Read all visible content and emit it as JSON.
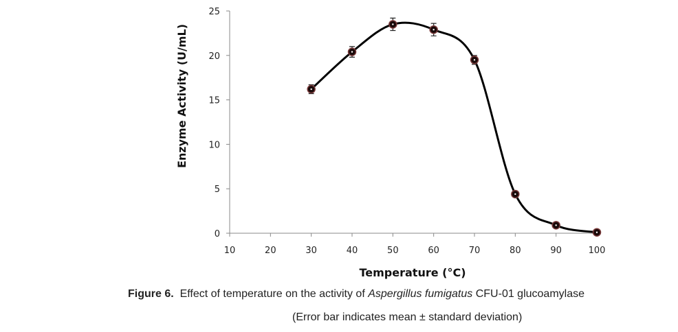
{
  "chart_data": {
    "type": "line",
    "xlabel": "Temperature (°C)",
    "ylabel": "Enzyme Activity (U/mL)",
    "xlim": [
      10,
      100
    ],
    "ylim": [
      0,
      25
    ],
    "xticks": [
      10,
      20,
      30,
      40,
      50,
      60,
      70,
      80,
      90,
      100
    ],
    "yticks": [
      0,
      5,
      10,
      15,
      20,
      25
    ],
    "grid": false,
    "x": [
      30,
      40,
      50,
      60,
      70,
      80,
      90,
      100
    ],
    "y": [
      16.2,
      20.4,
      23.5,
      22.9,
      19.5,
      4.4,
      0.9,
      0.1
    ],
    "y_err": [
      0.5,
      0.6,
      0.7,
      0.7,
      0.5,
      0.3,
      0.2,
      0.1
    ],
    "x_err": [
      0.5,
      0.5,
      0.5,
      0.5,
      0.5,
      0.5,
      0.3,
      0.2
    ]
  },
  "caption": {
    "label": "Figure 6.",
    "text_before": "Effect of temperature on the activity of ",
    "species": "Aspergillus fumigatus",
    "text_after": " CFU-01 glucoamylase",
    "note": "(Error bar indicates mean ± standard deviation)"
  }
}
